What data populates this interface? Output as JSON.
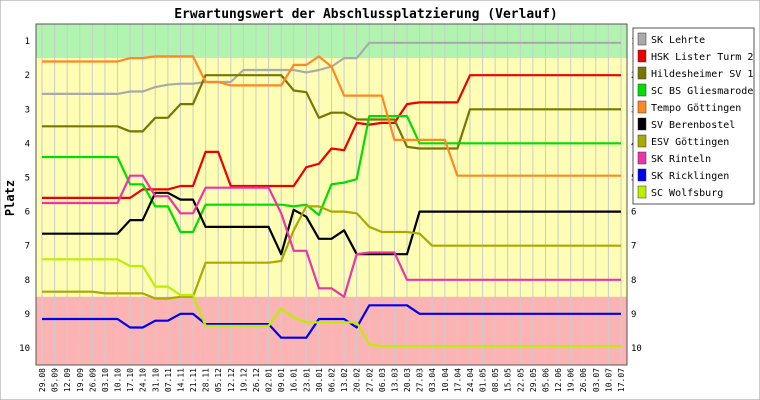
{
  "chart_data": {
    "type": "line",
    "title": "Erwartungswert der Abschlussplatzierung (Verlauf)",
    "ylabel": "Platz",
    "xlabel": "",
    "ylim": [
      0.5,
      10.5
    ],
    "y_inverted": true,
    "yticks": [
      "1",
      "2",
      "3",
      "4",
      "5",
      "6",
      "7",
      "8",
      "9",
      "10"
    ],
    "bands": [
      {
        "from": 0.5,
        "to": 1.5,
        "color": "#b0f4b0"
      },
      {
        "from": 1.5,
        "to": 8.5,
        "color": "#fdfdb3"
      },
      {
        "from": 8.5,
        "to": 10.5,
        "color": "#fcb3b3"
      }
    ],
    "categories": [
      "29.08",
      "05.09",
      "12.09",
      "19.09",
      "26.09",
      "03.10",
      "10.10",
      "17.10",
      "24.10",
      "31.10",
      "07.11",
      "14.11",
      "21.11",
      "28.11",
      "05.12",
      "12.12",
      "19.12",
      "26.12",
      "02.01",
      "09.01",
      "16.01",
      "23.01",
      "30.01",
      "06.02",
      "13.02",
      "20.02",
      "27.02",
      "06.03",
      "13.03",
      "20.03",
      "27.03",
      "03.04",
      "10.04",
      "17.04",
      "24.04",
      "01.05",
      "08.05",
      "15.05",
      "22.05",
      "29.05",
      "05.06",
      "12.06",
      "19.06",
      "26.06",
      "03.07",
      "10.07",
      "17.07"
    ],
    "legend_placement": "right",
    "series": [
      {
        "name": "SK Lehrte",
        "color": "#aaaaaa",
        "values": [
          2.55,
          2.55,
          2.55,
          2.55,
          2.55,
          2.55,
          2.55,
          2.48,
          2.48,
          2.35,
          2.28,
          2.25,
          2.25,
          2.2,
          2.2,
          2.2,
          1.85,
          1.85,
          1.85,
          1.85,
          1.85,
          1.92,
          1.85,
          1.75,
          1.5,
          1.5,
          1.05,
          1.05,
          1.05,
          1.05,
          1.05,
          1.05,
          1.05,
          1.05,
          1.05,
          1.05,
          1.05,
          1.05,
          1.05,
          1.05,
          1.05,
          1.05,
          1.05,
          1.05,
          1.05,
          1.05,
          1.05
        ]
      },
      {
        "name": "HSK Lister Turm 2",
        "color": "#ee0000",
        "values": [
          5.6,
          5.6,
          5.6,
          5.6,
          5.6,
          5.6,
          5.6,
          5.6,
          5.35,
          5.35,
          5.35,
          5.25,
          5.25,
          4.25,
          4.25,
          5.25,
          5.25,
          5.25,
          5.25,
          5.25,
          5.25,
          4.7,
          4.6,
          4.15,
          4.2,
          3.4,
          3.45,
          3.4,
          3.4,
          2.85,
          2.8,
          2.8,
          2.8,
          2.8,
          2.0,
          2.0,
          2.0,
          2.0,
          2.0,
          2.0,
          2.0,
          2.0,
          2.0,
          2.0,
          2.0,
          2.0,
          2.0
        ]
      },
      {
        "name": "Hildesheimer SV 1",
        "color": "#777700",
        "values": [
          3.5,
          3.5,
          3.5,
          3.5,
          3.5,
          3.5,
          3.5,
          3.65,
          3.65,
          3.25,
          3.25,
          2.85,
          2.85,
          2.0,
          2.0,
          2.0,
          2.0,
          2.0,
          2.0,
          2.0,
          2.45,
          2.5,
          3.25,
          3.1,
          3.1,
          3.3,
          3.3,
          3.3,
          3.3,
          4.1,
          4.15,
          4.15,
          4.15,
          4.15,
          3.0,
          3.0,
          3.0,
          3.0,
          3.0,
          3.0,
          3.0,
          3.0,
          3.0,
          3.0,
          3.0,
          3.0,
          3.0
        ]
      },
      {
        "name": "SC BS Gliesmarode",
        "color": "#00dd00",
        "values": [
          4.4,
          4.4,
          4.4,
          4.4,
          4.4,
          4.4,
          4.4,
          5.2,
          5.2,
          5.85,
          5.85,
          6.6,
          6.6,
          5.8,
          5.8,
          5.8,
          5.8,
          5.8,
          5.8,
          5.8,
          5.85,
          5.8,
          6.1,
          5.2,
          5.15,
          5.05,
          3.2,
          3.2,
          3.2,
          3.2,
          4.0,
          4.0,
          4.0,
          4.0,
          4.0,
          4.0,
          4.0,
          4.0,
          4.0,
          4.0,
          4.0,
          4.0,
          4.0,
          4.0,
          4.0,
          4.0,
          4.0
        ]
      },
      {
        "name": "Tempo Göttingen",
        "color": "#ff8822",
        "values": [
          1.6,
          1.6,
          1.6,
          1.6,
          1.6,
          1.6,
          1.6,
          1.5,
          1.5,
          1.45,
          1.45,
          1.45,
          1.45,
          2.2,
          2.2,
          2.3,
          2.3,
          2.3,
          2.3,
          2.3,
          1.7,
          1.7,
          1.45,
          1.75,
          2.6,
          2.6,
          2.6,
          2.6,
          3.9,
          3.9,
          3.9,
          3.9,
          3.9,
          4.95,
          4.95,
          4.95,
          4.95,
          4.95,
          4.95,
          4.95,
          4.95,
          4.95,
          4.95,
          4.95,
          4.95,
          4.95,
          4.95
        ]
      },
      {
        "name": "SV Berenbostel",
        "color": "#000000",
        "values": [
          6.65,
          6.65,
          6.65,
          6.65,
          6.65,
          6.65,
          6.65,
          6.25,
          6.25,
          5.45,
          5.45,
          5.65,
          5.65,
          6.45,
          6.45,
          6.45,
          6.45,
          6.45,
          6.45,
          7.25,
          5.95,
          6.15,
          6.8,
          6.8,
          6.55,
          7.25,
          7.25,
          7.25,
          7.25,
          7.25,
          6.0,
          6.0,
          6.0,
          6.0,
          6.0,
          6.0,
          6.0,
          6.0,
          6.0,
          6.0,
          6.0,
          6.0,
          6.0,
          6.0,
          6.0,
          6.0,
          6.0
        ]
      },
      {
        "name": "ESV Göttingen",
        "color": "#aaaa00",
        "values": [
          8.35,
          8.35,
          8.35,
          8.35,
          8.35,
          8.4,
          8.4,
          8.4,
          8.4,
          8.55,
          8.55,
          8.5,
          8.5,
          7.5,
          7.5,
          7.5,
          7.5,
          7.5,
          7.5,
          7.45,
          6.55,
          5.85,
          5.85,
          6.0,
          6.0,
          6.05,
          6.45,
          6.6,
          6.6,
          6.6,
          6.65,
          7.0,
          7.0,
          7.0,
          7.0,
          7.0,
          7.0,
          7.0,
          7.0,
          7.0,
          7.0,
          7.0,
          7.0,
          7.0,
          7.0,
          7.0,
          7.0
        ]
      },
      {
        "name": "SK Rinteln",
        "color": "#ee33aa",
        "values": [
          5.75,
          5.75,
          5.75,
          5.75,
          5.75,
          5.75,
          5.75,
          4.95,
          4.95,
          5.55,
          5.55,
          6.05,
          6.05,
          5.3,
          5.3,
          5.3,
          5.3,
          5.3,
          5.3,
          6.05,
          7.15,
          7.15,
          8.25,
          8.25,
          8.5,
          7.25,
          7.2,
          7.2,
          7.2,
          8.0,
          8.0,
          8.0,
          8.0,
          8.0,
          8.0,
          8.0,
          8.0,
          8.0,
          8.0,
          8.0,
          8.0,
          8.0,
          8.0,
          8.0,
          8.0,
          8.0,
          8.0
        ]
      },
      {
        "name": "SK Ricklingen",
        "color": "#0000ee",
        "values": [
          9.15,
          9.15,
          9.15,
          9.15,
          9.15,
          9.15,
          9.15,
          9.4,
          9.4,
          9.2,
          9.2,
          9.0,
          9.0,
          9.3,
          9.3,
          9.3,
          9.3,
          9.3,
          9.3,
          9.7,
          9.7,
          9.7,
          9.15,
          9.15,
          9.15,
          9.4,
          8.75,
          8.75,
          8.75,
          8.75,
          9.0,
          9.0,
          9.0,
          9.0,
          9.0,
          9.0,
          9.0,
          9.0,
          9.0,
          9.0,
          9.0,
          9.0,
          9.0,
          9.0,
          9.0,
          9.0,
          9.0
        ]
      },
      {
        "name": "SC Wolfsburg",
        "color": "#bbee00",
        "values": [
          7.4,
          7.4,
          7.4,
          7.4,
          7.4,
          7.4,
          7.4,
          7.6,
          7.6,
          8.2,
          8.2,
          8.45,
          8.45,
          9.35,
          9.35,
          9.35,
          9.35,
          9.35,
          9.35,
          8.85,
          9.1,
          9.25,
          9.25,
          9.25,
          9.25,
          9.25,
          9.9,
          9.95,
          9.95,
          9.95,
          9.95,
          9.95,
          9.95,
          9.95,
          9.95,
          9.95,
          9.95,
          9.95,
          9.95,
          9.95,
          9.95,
          9.95,
          9.95,
          9.95,
          9.95,
          9.95,
          9.95
        ]
      }
    ]
  }
}
